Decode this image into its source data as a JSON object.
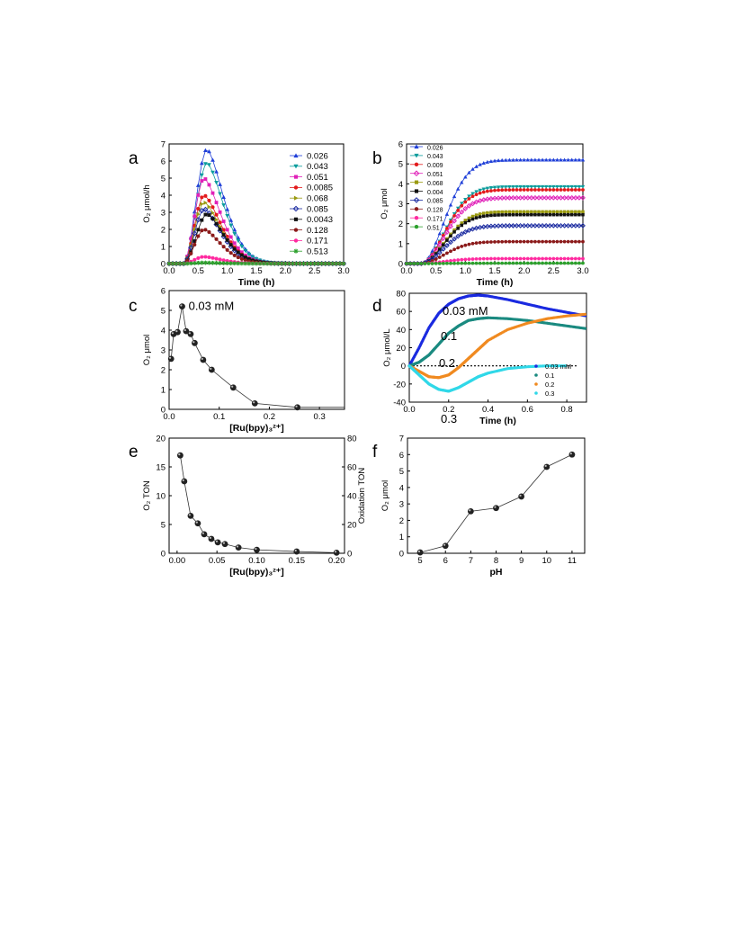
{
  "panels": [
    {
      "letter": "a",
      "type": "line",
      "xlabel": "Time (h)",
      "ylabel": "O₂ μmol/h",
      "xlim": [
        0,
        3.0
      ],
      "ylim": [
        0,
        7
      ],
      "xticks": [
        "0.0",
        "0.5",
        "1.0",
        "1.5",
        "2.0",
        "2.5",
        "3.0"
      ],
      "yticks": [
        "0",
        "1",
        "2",
        "3",
        "4",
        "5",
        "6",
        "7"
      ],
      "legend": "top-right",
      "series": [
        {
          "name": "0.026",
          "color": "#1f3fd8",
          "marker": "tri-up",
          "peak_time": 0.65,
          "peak": 6.7
        },
        {
          "name": "0.043",
          "color": "#0a9c9c",
          "marker": "tri-down",
          "peak_time": 0.65,
          "peak": 5.9
        },
        {
          "name": "0.051",
          "color": "#e020b8",
          "marker": "square",
          "peak_time": 0.6,
          "peak": 5.0
        },
        {
          "name": "0.0085",
          "color": "#e31a1c",
          "marker": "circle",
          "peak_time": 0.6,
          "peak": 4.0
        },
        {
          "name": "0.068",
          "color": "#9a9a10",
          "marker": "tri-right",
          "peak_time": 0.6,
          "peak": 3.6
        },
        {
          "name": "0.085",
          "color": "#1a2aa0",
          "marker": "diamond",
          "peak_time": 0.6,
          "peak": 3.2
        },
        {
          "name": "0.0043",
          "color": "#111111",
          "marker": "square",
          "peak_time": 0.65,
          "peak": 2.9
        },
        {
          "name": "0.128",
          "color": "#8b1a1a",
          "marker": "circle",
          "peak_time": 0.6,
          "peak": 2.0
        },
        {
          "name": "0.171",
          "color": "#ff2aa0",
          "marker": "circle",
          "peak_time": 0.6,
          "peak": 0.4
        },
        {
          "name": "0.513",
          "color": "#2ca02c",
          "marker": "star",
          "peak_time": 0.6,
          "peak": 0.05
        }
      ]
    },
    {
      "letter": "b",
      "type": "line",
      "xlabel": "Time (h)",
      "ylabel": "O₂ μmol",
      "xlim": [
        0,
        3.0
      ],
      "ylim": [
        0,
        6
      ],
      "xticks": [
        "0.0",
        "0.5",
        "1.0",
        "1.5",
        "2.0",
        "2.5",
        "3.0"
      ],
      "yticks": [
        "0",
        "1",
        "2",
        "3",
        "4",
        "5",
        "6"
      ],
      "legend": "top-left",
      "series": [
        {
          "name": "0.026",
          "color": "#1f3fd8",
          "marker": "tri-up",
          "plateau": 5.2
        },
        {
          "name": "0.043",
          "color": "#0a9c9c",
          "marker": "tri-down",
          "plateau": 3.85
        },
        {
          "name": "0.009",
          "color": "#e31a1c",
          "marker": "circle",
          "plateau": 3.7
        },
        {
          "name": "0.051",
          "color": "#e020b8",
          "marker": "diamond",
          "plateau": 3.3
        },
        {
          "name": "0.068",
          "color": "#9a9a10",
          "marker": "square",
          "plateau": 2.6
        },
        {
          "name": "0.004",
          "color": "#111111",
          "marker": "square",
          "plateau": 2.45
        },
        {
          "name": "0.085",
          "color": "#1a2aa0",
          "marker": "diamond",
          "plateau": 1.9
        },
        {
          "name": "0.128",
          "color": "#8b1a1a",
          "marker": "circle",
          "plateau": 1.1
        },
        {
          "name": "0.171",
          "color": "#ff2aa0",
          "marker": "circle",
          "plateau": 0.25
        },
        {
          "name": "0.51",
          "color": "#2ca02c",
          "marker": "circle",
          "plateau": 0.02
        }
      ]
    },
    {
      "letter": "c",
      "type": "scatter",
      "xlabel": "[Ru(bpy)₃²⁺]",
      "ylabel": "O₂ μmol",
      "xlim": [
        0,
        0.35
      ],
      "ylim": [
        0,
        6
      ],
      "xticks": [
        "0.0",
        "0.1",
        "0.2",
        "0.3"
      ],
      "yticks": [
        "0",
        "1",
        "2",
        "3",
        "4",
        "5",
        "6"
      ],
      "annotation": "0.03 mM",
      "x": [
        0.004,
        0.009,
        0.017,
        0.026,
        0.034,
        0.043,
        0.051,
        0.068,
        0.085,
        0.128,
        0.171,
        0.256
      ],
      "y": [
        2.55,
        3.8,
        3.9,
        5.2,
        3.95,
        3.8,
        3.35,
        2.5,
        2.0,
        1.1,
        0.3,
        0.1
      ]
    },
    {
      "letter": "d",
      "type": "line",
      "xlabel": "Time (h)",
      "ylabel": "O₂ μmol/L",
      "xlim": [
        0,
        0.9
      ],
      "ylim": [
        -40,
        80
      ],
      "xticks": [
        "0.0",
        "0.2",
        "0.4",
        "0.6",
        "0.8"
      ],
      "yticks": [
        "-40",
        "-20",
        "0",
        "20",
        "40",
        "60",
        "80"
      ],
      "legend": "bottom-right",
      "annotations": [
        "0.03 mM",
        "0.1",
        "0.2",
        "0.3"
      ],
      "series": [
        {
          "name": "0.03 mM",
          "color": "#1a2ae0",
          "x": [
            0,
            0.05,
            0.1,
            0.15,
            0.2,
            0.25,
            0.3,
            0.35,
            0.4,
            0.5,
            0.6,
            0.7,
            0.8,
            0.9
          ],
          "y": [
            0,
            20,
            42,
            58,
            68,
            74,
            77,
            78,
            77,
            73,
            68,
            63,
            59,
            55
          ]
        },
        {
          "name": "0.1",
          "color": "#1a8a80",
          "x": [
            0,
            0.05,
            0.1,
            0.15,
            0.2,
            0.25,
            0.3,
            0.35,
            0.4,
            0.5,
            0.6,
            0.7,
            0.8,
            0.9
          ],
          "y": [
            0,
            4,
            12,
            24,
            36,
            44,
            50,
            52,
            53,
            52,
            50,
            47,
            44,
            41
          ]
        },
        {
          "name": "0.2",
          "color": "#f08a20",
          "x": [
            0,
            0.05,
            0.1,
            0.15,
            0.2,
            0.25,
            0.3,
            0.35,
            0.4,
            0.5,
            0.6,
            0.7,
            0.8,
            0.9
          ],
          "y": [
            0,
            -6,
            -12,
            -13,
            -10,
            -2,
            8,
            18,
            28,
            40,
            47,
            52,
            55,
            57
          ]
        },
        {
          "name": "0.3",
          "color": "#30d8e8",
          "x": [
            0,
            0.05,
            0.1,
            0.15,
            0.2,
            0.25,
            0.3,
            0.35,
            0.4,
            0.5,
            0.6,
            0.7,
            0.8
          ],
          "y": [
            0,
            -10,
            -20,
            -26,
            -28,
            -24,
            -18,
            -12,
            -8,
            -3,
            -1,
            0,
            0
          ]
        }
      ]
    },
    {
      "letter": "e",
      "type": "scatter",
      "xlabel": "[Ru(bpy)₃²⁺]",
      "ylabel": "O₂ TON",
      "ylabel_right": "Oxidation TON",
      "xlim": [
        -0.01,
        0.21
      ],
      "ylim": [
        0,
        20
      ],
      "ylim_right": [
        0,
        80
      ],
      "xticks": [
        "0.00",
        "0.05",
        "0.10",
        "0.15",
        "0.20"
      ],
      "yticks": [
        "0",
        "5",
        "10",
        "15",
        "20"
      ],
      "yticks_right": [
        "0",
        "20",
        "40",
        "60",
        "80"
      ],
      "x": [
        0.004,
        0.009,
        0.017,
        0.026,
        0.034,
        0.043,
        0.051,
        0.06,
        0.077,
        0.1,
        0.15,
        0.2
      ],
      "y": [
        17.0,
        12.5,
        6.5,
        5.2,
        3.3,
        2.5,
        1.9,
        1.6,
        1.0,
        0.6,
        0.3,
        0.1
      ]
    },
    {
      "letter": "f",
      "type": "scatter",
      "xlabel": "pH",
      "ylabel": "O₂ μmol",
      "xlim": [
        4.5,
        11.5
      ],
      "ylim": [
        0,
        7
      ],
      "xticks": [
        "5",
        "6",
        "7",
        "8",
        "9",
        "10",
        "11"
      ],
      "yticks": [
        "0",
        "1",
        "2",
        "3",
        "4",
        "5",
        "6",
        "7"
      ],
      "x": [
        5,
        6,
        7,
        8,
        9,
        10,
        11
      ],
      "y": [
        0.05,
        0.45,
        2.55,
        2.75,
        3.45,
        5.25,
        6.0
      ]
    }
  ],
  "chart_data": [
    {
      "type": "line",
      "panel": "a",
      "xlabel": "Time (h)",
      "ylabel": "O₂ μmol/h",
      "xlim": [
        0,
        3.0
      ],
      "ylim": [
        0,
        7
      ],
      "series": [
        {
          "name": "0.026",
          "peak": 6.7
        },
        {
          "name": "0.043",
          "peak": 5.9
        },
        {
          "name": "0.051",
          "peak": 5.0
        },
        {
          "name": "0.0085",
          "peak": 4.0
        },
        {
          "name": "0.068",
          "peak": 3.6
        },
        {
          "name": "0.085",
          "peak": 3.2
        },
        {
          "name": "0.0043",
          "peak": 2.9
        },
        {
          "name": "0.128",
          "peak": 2.0
        },
        {
          "name": "0.171",
          "peak": 0.4
        },
        {
          "name": "0.513",
          "peak": 0.05
        }
      ]
    },
    {
      "type": "line",
      "panel": "b",
      "xlabel": "Time (h)",
      "ylabel": "O₂ μmol",
      "xlim": [
        0,
        3.0
      ],
      "ylim": [
        0,
        6
      ],
      "series": [
        {
          "name": "0.026",
          "plateau": 5.2
        },
        {
          "name": "0.043",
          "plateau": 3.85
        },
        {
          "name": "0.009",
          "plateau": 3.7
        },
        {
          "name": "0.051",
          "plateau": 3.3
        },
        {
          "name": "0.068",
          "plateau": 2.6
        },
        {
          "name": "0.004",
          "plateau": 2.45
        },
        {
          "name": "0.085",
          "plateau": 1.9
        },
        {
          "name": "0.128",
          "plateau": 1.1
        },
        {
          "name": "0.171",
          "plateau": 0.25
        },
        {
          "name": "0.51",
          "plateau": 0.02
        }
      ]
    },
    {
      "type": "scatter",
      "panel": "c",
      "xlabel": "[Ru(bpy)₃²⁺]",
      "ylabel": "O₂ μmol",
      "x": [
        0.004,
        0.009,
        0.017,
        0.026,
        0.034,
        0.043,
        0.051,
        0.068,
        0.085,
        0.128,
        0.171,
        0.256
      ],
      "y": [
        2.55,
        3.8,
        3.9,
        5.2,
        3.95,
        3.8,
        3.35,
        2.5,
        2.0,
        1.1,
        0.3,
        0.1
      ]
    },
    {
      "type": "line",
      "panel": "d",
      "xlabel": "Time (h)",
      "ylabel": "O₂ μmol/L",
      "xlim": [
        0,
        0.9
      ],
      "ylim": [
        -40,
        80
      ],
      "series": [
        {
          "name": "0.03 mM"
        },
        {
          "name": "0.1"
        },
        {
          "name": "0.2"
        },
        {
          "name": "0.3"
        }
      ]
    },
    {
      "type": "scatter",
      "panel": "e",
      "xlabel": "[Ru(bpy)₃²⁺]",
      "ylabel": "O₂ TON",
      "ylabel_right": "Oxidation TON",
      "x": [
        0.004,
        0.009,
        0.017,
        0.026,
        0.034,
        0.043,
        0.051,
        0.06,
        0.077,
        0.1,
        0.15,
        0.2
      ],
      "y": [
        17.0,
        12.5,
        6.5,
        5.2,
        3.3,
        2.5,
        1.9,
        1.6,
        1.0,
        0.6,
        0.3,
        0.1
      ]
    },
    {
      "type": "scatter",
      "panel": "f",
      "xlabel": "pH",
      "ylabel": "O₂ μmol",
      "x": [
        5,
        6,
        7,
        8,
        9,
        10,
        11
      ],
      "y": [
        0.05,
        0.45,
        2.55,
        2.75,
        3.45,
        5.25,
        6.0
      ]
    }
  ]
}
